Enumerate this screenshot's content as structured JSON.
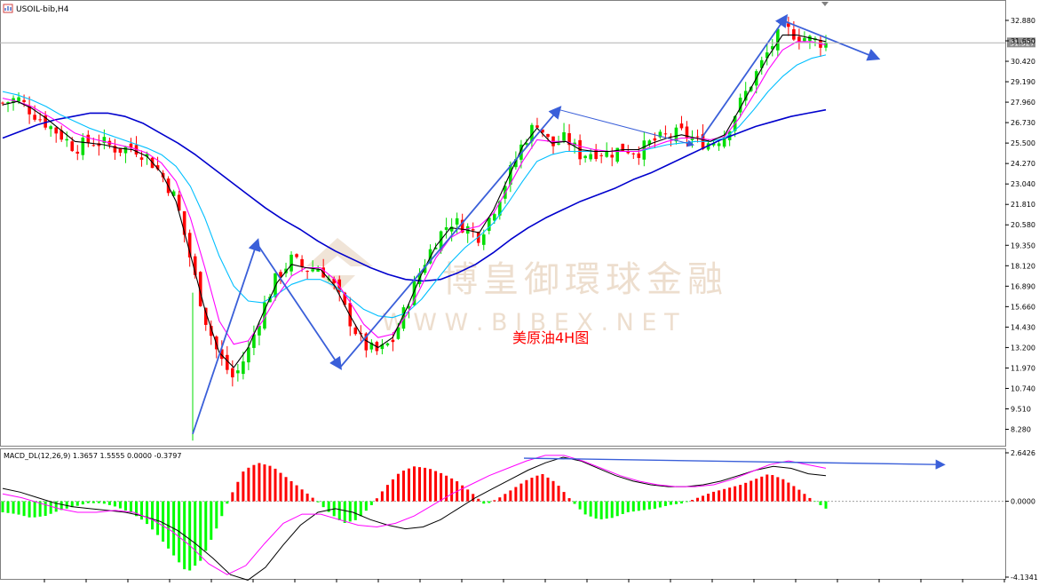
{
  "chart_data": [
    {
      "type": "candlestick",
      "symbol": "USOIL-bib,H4",
      "annotation": "美原油4H图",
      "watermark": {
        "cn": "博皇御環球金融",
        "en": "W W W . B I B E X . N E T"
      },
      "ylim": [
        7.4,
        34.0
      ],
      "y_ticks": [
        "32.880",
        "31.650",
        "30.420",
        "29.190",
        "27.960",
        "26.730",
        "25.500",
        "24.270",
        "23.040",
        "21.810",
        "20.580",
        "19.350",
        "18.120",
        "16.890",
        "15.660",
        "14.430",
        "13.200",
        "11.970",
        "10.740",
        "9.510",
        "8.280"
      ],
      "current_price": "31.527",
      "current_price_value": 31.527,
      "close_path": [
        27.9,
        28.2,
        27.4,
        26.7,
        26.0,
        25.2,
        25.6,
        25.5,
        25.1,
        25.3,
        24.7,
        23.6,
        22.1,
        18.5,
        15.0,
        12.6,
        11.3,
        13.0,
        15.5,
        17.5,
        18.5,
        17.9,
        18.0,
        16.8,
        14.9,
        13.3,
        12.9,
        13.6,
        15.8,
        18.0,
        19.7,
        20.8,
        20.5,
        19.9,
        21.5,
        23.5,
        25.5,
        26.8,
        25.3,
        25.8,
        24.8,
        25.0,
        24.9,
        25.2,
        25.0,
        25.6,
        25.9,
        26.1,
        25.6,
        25.5,
        26.0,
        27.8,
        29.4,
        31.0,
        32.4,
        32.0,
        31.7,
        31.5
      ],
      "ma_fast": [
        27.8,
        28.0,
        27.6,
        27.0,
        26.3,
        25.6,
        25.5,
        25.4,
        25.2,
        25.1,
        24.7,
        23.7,
        22.0,
        18.8,
        15.5,
        12.9,
        12.0,
        13.2,
        15.2,
        17.1,
        18.2,
        18.0,
        17.9,
        16.9,
        15.2,
        13.7,
        13.2,
        13.8,
        15.6,
        17.6,
        19.3,
        20.4,
        20.3,
        20.1,
        21.5,
        23.4,
        25.3,
        26.4,
        25.5,
        25.6,
        25.1,
        25.0,
        25.0,
        25.1,
        25.1,
        25.5,
        25.8,
        26.0,
        25.8,
        25.6,
        26.0,
        27.5,
        29.1,
        30.7,
        32.0,
        32.0,
        31.8,
        31.6
      ],
      "ma_mid": [
        28.2,
        28.0,
        27.7,
        27.2,
        26.7,
        26.1,
        25.8,
        25.6,
        25.4,
        25.2,
        24.9,
        24.3,
        23.2,
        21.0,
        18.0,
        14.8,
        13.4,
        13.6,
        14.8,
        16.3,
        17.5,
        18.0,
        18.0,
        17.3,
        16.0,
        14.6,
        13.8,
        14.0,
        15.2,
        16.9,
        18.6,
        19.8,
        20.3,
        20.5,
        21.3,
        22.8,
        24.4,
        25.7,
        25.6,
        25.6,
        25.3,
        25.1,
        25.0,
        25.0,
        25.0,
        25.3,
        25.6,
        25.8,
        25.8,
        25.7,
        25.9,
        27.0,
        28.4,
        29.9,
        31.1,
        31.6,
        31.6,
        31.4
      ],
      "ma_slow": [
        28.6,
        28.4,
        28.1,
        27.7,
        27.2,
        26.8,
        26.4,
        26.1,
        25.8,
        25.5,
        25.2,
        24.8,
        24.1,
        22.9,
        21.0,
        18.7,
        16.9,
        16.0,
        15.9,
        16.4,
        17.0,
        17.3,
        17.3,
        16.9,
        16.2,
        15.5,
        15.1,
        15.0,
        15.3,
        16.1,
        17.2,
        18.3,
        19.2,
        19.9,
        20.7,
        21.9,
        23.2,
        24.4,
        24.8,
        25.0,
        25.0,
        25.0,
        25.0,
        25.0,
        25.0,
        25.2,
        25.4,
        25.5,
        25.6,
        25.6,
        25.8,
        26.5,
        27.5,
        28.6,
        29.5,
        30.2,
        30.6,
        30.8
      ],
      "ma_long": [
        25.8,
        26.2,
        26.6,
        26.9,
        27.1,
        27.3,
        27.3,
        27.1,
        26.7,
        26.1,
        25.5,
        24.8,
        24.0,
        23.2,
        22.4,
        21.6,
        20.9,
        20.3,
        19.6,
        19.0,
        18.5,
        18.0,
        17.6,
        17.3,
        17.2,
        17.3,
        17.7,
        18.2,
        18.9,
        19.7,
        20.4,
        21.0,
        21.5,
        22.0,
        22.4,
        22.8,
        23.3,
        23.7,
        24.2,
        24.7,
        25.2,
        25.7,
        26.1,
        26.5,
        26.8,
        27.1,
        27.3,
        27.5
      ],
      "trend_lines": [
        {
          "from": [
            217,
            8.0
          ],
          "to": [
            290,
            19.6
          ]
        },
        {
          "from": [
            290,
            19.4
          ],
          "to": [
            383,
            12.0
          ]
        },
        {
          "from": [
            383,
            12.0
          ],
          "to": [
            630,
            27.6
          ]
        },
        {
          "from": [
            630,
            27.5
          ],
          "to": [
            780,
            25.4
          ]
        },
        {
          "from": [
            790,
            25.8
          ],
          "to": [
            885,
            33.1
          ]
        },
        {
          "from": [
            885,
            32.8
          ],
          "to": [
            988,
            30.6
          ]
        }
      ]
    },
    {
      "type": "bar",
      "title": "MACD_DL(12,26,9) 1.3657 1.5555 0.0000 -0.3797",
      "ylim": [
        -4.1341,
        2.6426
      ],
      "y_ticks": [
        "2.6426",
        "0.0000",
        "-4.1341"
      ],
      "histogram": [
        -0.6,
        -0.7,
        -0.9,
        -0.8,
        -0.5,
        -0.3,
        -0.1,
        -0.1,
        -0.3,
        -0.6,
        -1.1,
        -1.9,
        -2.9,
        -3.9,
        -3.2,
        -1.6,
        0.2,
        1.7,
        2.1,
        1.9,
        1.3,
        0.7,
        0.1,
        -0.6,
        -1.2,
        -1.0,
        -0.2,
        0.8,
        1.6,
        1.9,
        1.8,
        1.5,
        1.1,
        0.5,
        -0.2,
        0.2,
        0.7,
        1.2,
        1.5,
        1.0,
        0.1,
        -0.7,
        -1.0,
        -0.9,
        -0.6,
        -0.5,
        -0.4,
        -0.2,
        -0.1,
        0.2,
        0.5,
        0.7,
        0.9,
        1.2,
        1.5,
        1.2,
        0.7,
        0.1,
        -0.4
      ],
      "macd_line": [
        0.7,
        0.5,
        0.2,
        -0.1,
        -0.3,
        -0.4,
        -0.5,
        -0.6,
        -0.8,
        -1.1,
        -1.6,
        -2.3,
        -3.1,
        -4.0,
        -4.3,
        -3.6,
        -2.4,
        -1.3,
        -0.6,
        -0.4,
        -0.6,
        -1.0,
        -1.3,
        -1.5,
        -1.4,
        -1.0,
        -0.4,
        0.2,
        0.7,
        1.2,
        1.7,
        2.1,
        2.4,
        2.2,
        1.8,
        1.4,
        1.1,
        0.9,
        0.8,
        0.8,
        0.9,
        1.1,
        1.4,
        1.7,
        1.9,
        1.8,
        1.5,
        1.4
      ],
      "signal_line": [
        0.4,
        0.2,
        -0.1,
        -0.4,
        -0.6,
        -0.6,
        -0.5,
        -0.6,
        -1.0,
        -1.6,
        -2.4,
        -3.4,
        -4.0,
        -3.5,
        -2.3,
        -1.2,
        -0.7,
        -0.7,
        -1.0,
        -1.3,
        -1.4,
        -1.2,
        -0.8,
        -0.2,
        0.4,
        0.9,
        1.4,
        1.8,
        2.2,
        2.5,
        2.5,
        2.2,
        1.8,
        1.4,
        1.1,
        0.9,
        0.8,
        0.8,
        0.9,
        1.2,
        1.6,
        2.0,
        2.2,
        2.0,
        1.8
      ],
      "trend_line": {
        "from": [
          590,
          2.35
        ],
        "to": [
          1062,
          2.0
        ]
      },
      "colors": {
        "positive": "#FF0000",
        "negative": "#00FF00",
        "macd": "#000000",
        "signal": "#FF00FF"
      }
    }
  ],
  "colors": {
    "ma_fast": "#000000",
    "ma_mid": "#FF00FF",
    "ma_slow": "#00BFFF",
    "ma_long": "#0000CD",
    "trend": "#3A5FD9",
    "annotation": "#FF0000",
    "bull": "#00DD00",
    "bear": "#FF0000"
  }
}
